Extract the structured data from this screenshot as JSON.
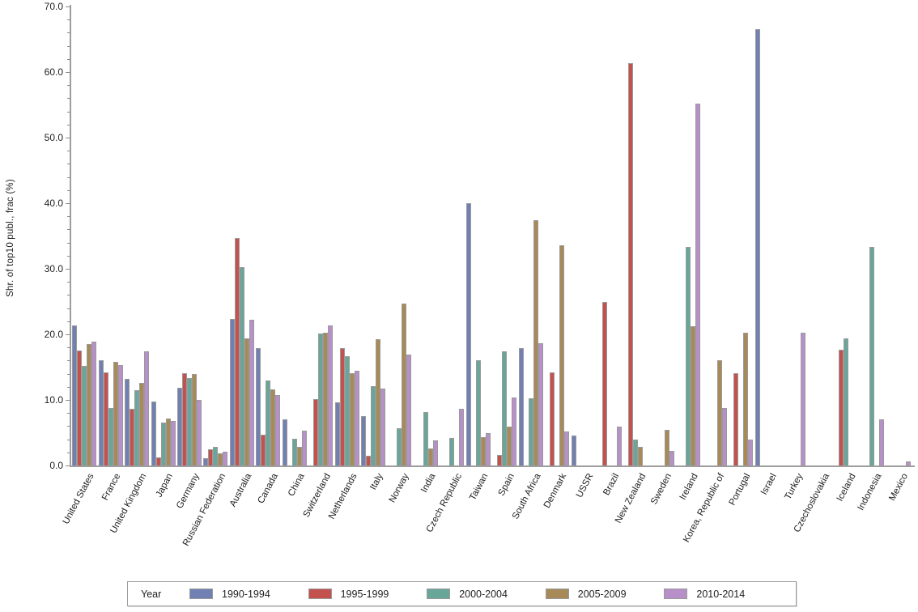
{
  "chart_data": {
    "type": "bar",
    "title": "",
    "xlabel": "",
    "ylabel": "Shr. of top10 publ., frac (%)",
    "ylim": [
      0,
      70
    ],
    "y_major_tick_step": 10,
    "y_minor_tick_step": 2,
    "y_tick_decimals": 1,
    "grid": false,
    "legend_position": "bottom",
    "legend_title": "Year",
    "categories": [
      "United States",
      "France",
      "United Kingdom",
      "Japan",
      "Germany",
      "Russian Federation",
      "Australia",
      "Canada",
      "China",
      "Switzerland",
      "Netherlands",
      "Italy",
      "Norway",
      "India",
      "Czech Republic",
      "Taiwan",
      "Spain",
      "South Africa",
      "Denmark",
      "USSR",
      "Brazil",
      "New Zealand",
      "Sweden",
      "Ireland",
      "Korea, Republic of",
      "Portugal",
      "Israel",
      "Turkey",
      "Czechoslovakia",
      "Iceland",
      "Indonesia",
      "Mexico"
    ],
    "series": [
      {
        "name": "1990-1994",
        "color": "#7080b2",
        "values": [
          21.4,
          16.0,
          13.2,
          9.7,
          11.8,
          1.1,
          22.4,
          17.9,
          7.0,
          null,
          9.6,
          7.5,
          null,
          null,
          null,
          40.0,
          null,
          17.9,
          null,
          4.6,
          null,
          null,
          null,
          null,
          null,
          null,
          66.6,
          null,
          null,
          null,
          null,
          null
        ]
      },
      {
        "name": "1995-1999",
        "color": "#c5514f",
        "values": [
          17.5,
          14.2,
          8.7,
          1.2,
          14.1,
          2.5,
          34.7,
          4.7,
          null,
          10.1,
          17.9,
          1.5,
          null,
          null,
          null,
          null,
          1.6,
          null,
          14.2,
          null,
          25.0,
          61.4,
          null,
          null,
          null,
          14.1,
          null,
          null,
          null,
          17.7,
          null,
          null
        ]
      },
      {
        "name": "2000-2004",
        "color": "#68a69a",
        "values": [
          15.2,
          8.8,
          11.5,
          6.6,
          13.3,
          2.9,
          30.3,
          13.0,
          4.1,
          20.1,
          16.7,
          12.1,
          5.7,
          8.2,
          4.2,
          16.1,
          17.4,
          10.2,
          null,
          null,
          null,
          4.0,
          null,
          33.3,
          null,
          null,
          null,
          null,
          null,
          19.4,
          33.3,
          null
        ]
      },
      {
        "name": "2005-2009",
        "color": "#a88a58",
        "values": [
          18.5,
          15.8,
          12.6,
          7.1,
          14.0,
          1.9,
          19.4,
          11.6,
          2.9,
          20.3,
          14.1,
          19.2,
          24.7,
          2.6,
          null,
          4.3,
          5.9,
          37.4,
          33.6,
          null,
          null,
          2.8,
          5.4,
          21.2,
          16.0,
          20.3,
          null,
          null,
          null,
          null,
          null,
          null
        ]
      },
      {
        "name": "2010-2014",
        "color": "#b790c9",
        "values": [
          18.9,
          15.3,
          17.4,
          6.8,
          10.0,
          2.1,
          22.2,
          10.7,
          5.3,
          21.4,
          14.4,
          11.7,
          16.9,
          3.8,
          8.7,
          4.9,
          10.4,
          18.7,
          5.2,
          null,
          5.9,
          null,
          2.2,
          55.2,
          8.8,
          4.0,
          null,
          20.2,
          null,
          null,
          7.0,
          0.6
        ]
      }
    ]
  }
}
